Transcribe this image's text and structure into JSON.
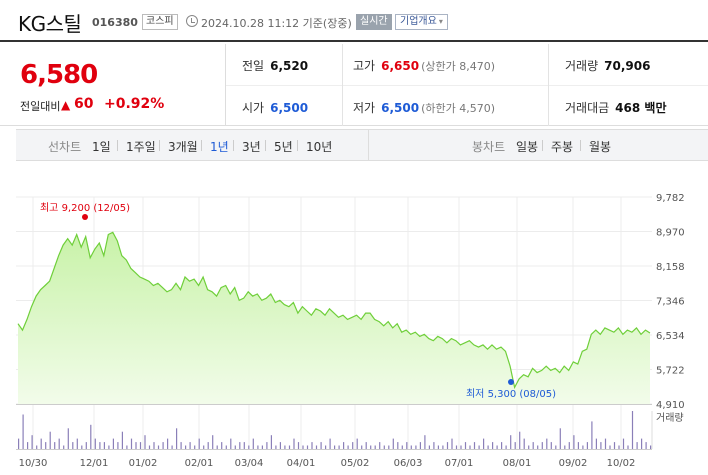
{
  "header": {
    "name": "KG스틸",
    "code": "016380",
    "market": "코스피",
    "timestamp": "2024.10.28 11:12  기준(장중)",
    "realtime": "실시간",
    "company_info": "기업개요",
    "company_info_caret": "▾"
  },
  "quote": {
    "price": "6,580",
    "change_label": "전일대비",
    "change_arrow": "▲",
    "change": "60",
    "change_rate": "+0.92%",
    "prev_close_label": "전일",
    "prev_close": "6,520",
    "high_label": "고가",
    "high": "6,650",
    "upper_limit": "(상한가 8,470)",
    "volume_label": "거래량",
    "volume": "70,906",
    "open_label": "시가",
    "open": "6,500",
    "low_label": "저가",
    "low": "6,500",
    "lower_limit": "(하한가 4,570)",
    "amount_label": "거래대금",
    "amount": "468 백만"
  },
  "tabs": {
    "line_label": "선차트",
    "line_tabs": [
      "1일",
      "1주일",
      "3개월",
      "1년",
      "3년",
      "5년",
      "10년"
    ],
    "active_tab": "1년",
    "candle_label": "봉차트",
    "candle_tabs": [
      "일봉",
      "주봉",
      "월봉"
    ]
  },
  "colors": {
    "up": "#e0000e",
    "down": "#1e5bd6",
    "line": "#6fcf3a",
    "fill_top": "#c8f2a8",
    "fill_bottom": "#f2fcea",
    "volume_bar": "#8a7fb8"
  },
  "chart_data": {
    "type": "area",
    "y_ticks": [
      "9,782",
      "8,970",
      "8,158",
      "7,346",
      "6,534",
      "5,722",
      "4,910"
    ],
    "ylim": [
      4910,
      9782
    ],
    "x_ticks": [
      "10/30",
      "12/01",
      "01/02",
      "02/01",
      "03/04",
      "04/01",
      "05/02",
      "06/03",
      "07/01",
      "08/01",
      "09/02",
      "10/02"
    ],
    "high_annotation": "최고  9,200 (12/05)",
    "high": {
      "x": "12/05",
      "value": 9200
    },
    "low_annotation": "최저  5,300 (08/05)",
    "low": {
      "x": "08/05",
      "value": 5300
    },
    "volume_label": "거래량",
    "price_series": [
      6800,
      6650,
      6900,
      7200,
      7450,
      7600,
      7700,
      7800,
      8100,
      8400,
      8650,
      8800,
      8650,
      8900,
      8600,
      8850,
      8350,
      8550,
      8700,
      8400,
      8900,
      8950,
      8750,
      8400,
      8300,
      8100,
      8000,
      7900,
      7850,
      7800,
      7700,
      7750,
      7650,
      7550,
      7600,
      7750,
      7600,
      7900,
      7800,
      7850,
      7700,
      7900,
      7600,
      7550,
      7450,
      7650,
      7700,
      7500,
      7650,
      7350,
      7400,
      7550,
      7450,
      7500,
      7350,
      7400,
      7500,
      7300,
      7350,
      7250,
      7200,
      7300,
      7050,
      7200,
      7100,
      7000,
      7150,
      7100,
      7000,
      7150,
      7050,
      6950,
      7000,
      6900,
      6950,
      7000,
      6900,
      7050,
      7050,
      6900,
      6850,
      6750,
      6850,
      6700,
      6800,
      6600,
      6650,
      6550,
      6600,
      6500,
      6550,
      6450,
      6400,
      6500,
      6450,
      6350,
      6450,
      6400,
      6300,
      6350,
      6400,
      6300,
      6250,
      6300,
      6200,
      6300,
      6200,
      6250,
      6150,
      5800,
      5300,
      5500,
      5600,
      5550,
      5750,
      5650,
      5700,
      5800,
      5700,
      5750,
      5650,
      5800,
      5700,
      5900,
      5850,
      6150,
      6200,
      6550,
      6650,
      6550,
      6700,
      6650,
      6600,
      6700,
      6550,
      6650,
      6600,
      6700,
      6550,
      6650,
      6580
    ],
    "volume_series": [
      3,
      10,
      2,
      4,
      1,
      3,
      2,
      5,
      2,
      3,
      1,
      6,
      2,
      3,
      1,
      2,
      7,
      3,
      2,
      2,
      1,
      3,
      2,
      5,
      1,
      3,
      2,
      2,
      4,
      1,
      2,
      1,
      2,
      3,
      1,
      6,
      2,
      1,
      2,
      1,
      3,
      1,
      2,
      4,
      1,
      2,
      1,
      3,
      1,
      2,
      2,
      1,
      3,
      1,
      1,
      2,
      4,
      1,
      2,
      1,
      1,
      3,
      2,
      1,
      1,
      2,
      1,
      2,
      1,
      3,
      1,
      1,
      2,
      1,
      2,
      3,
      1,
      2,
      1,
      1,
      2,
      1,
      1,
      3,
      2,
      1,
      2,
      1,
      1,
      2,
      4,
      1,
      2,
      1,
      1,
      2,
      3,
      1,
      1,
      2,
      1,
      2,
      1,
      3,
      1,
      2,
      1,
      2,
      1,
      4,
      2,
      5,
      3,
      1,
      2,
      1,
      2,
      3,
      2,
      1,
      6,
      1,
      2,
      4,
      2,
      1,
      2,
      8,
      3,
      2,
      3,
      1,
      2,
      1,
      3,
      1,
      11,
      2,
      3,
      2,
      1
    ]
  }
}
